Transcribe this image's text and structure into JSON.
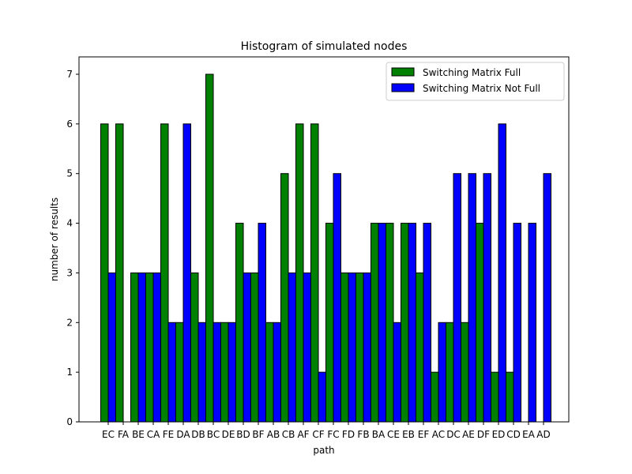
{
  "chart_data": {
    "type": "bar",
    "title": "Histogram of simulated nodes",
    "xlabel": "path",
    "ylabel": "number of results",
    "ylim": [
      0,
      7.35
    ],
    "yticks": [
      0,
      1,
      2,
      3,
      4,
      5,
      6,
      7
    ],
    "categories": [
      "EC",
      "FA",
      "BE",
      "CA",
      "FE",
      "DA",
      "DB",
      "BC",
      "DE",
      "BD",
      "BF",
      "AB",
      "CB",
      "AF",
      "CF",
      "FC",
      "FD",
      "FB",
      "BA",
      "CE",
      "EB",
      "EF",
      "AC",
      "DC",
      "AE",
      "DF",
      "ED",
      "CD",
      "EA",
      "AD"
    ],
    "series": [
      {
        "name": "Switching Matrix Full",
        "color": "#008000",
        "values": [
          6,
          6,
          3,
          3,
          6,
          2,
          3,
          7,
          2,
          4,
          3,
          2,
          5,
          6,
          6,
          4,
          3,
          3,
          4,
          4,
          4,
          3,
          1,
          2,
          2,
          4,
          1,
          1,
          0,
          0
        ]
      },
      {
        "name": "Switching Matrix Not Full",
        "color": "#0000ff",
        "values": [
          3,
          0,
          3,
          3,
          2,
          6,
          2,
          2,
          2,
          3,
          4,
          2,
          3,
          3,
          1,
          5,
          3,
          3,
          4,
          2,
          4,
          4,
          2,
          5,
          5,
          5,
          6,
          4,
          4,
          5
        ]
      }
    ],
    "legend_position": "upper-right",
    "grid": false
  }
}
